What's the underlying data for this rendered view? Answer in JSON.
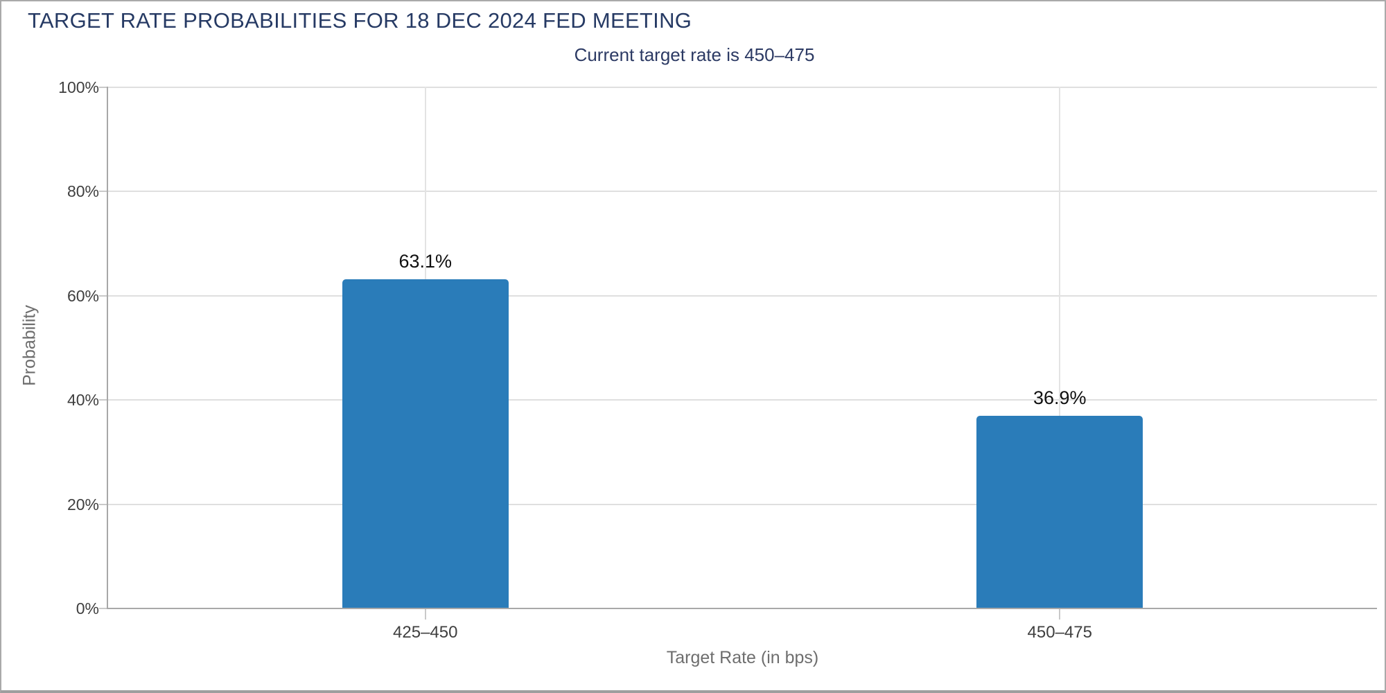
{
  "chart_data": {
    "type": "bar",
    "title": "TARGET RATE PROBABILITIES FOR 18 DEC 2024 FED MEETING",
    "subtitle": "Current target rate is 450–475",
    "categories": [
      "425–450",
      "450–475"
    ],
    "values": [
      63.1,
      36.9
    ],
    "value_labels": [
      "63.1%",
      "36.9%"
    ],
    "xlabel": "Target Rate (in bps)",
    "ylabel": "Probability",
    "ylim": [
      0,
      100
    ],
    "ytick_step": 20,
    "yticks": [
      "0%",
      "20%",
      "40%",
      "60%",
      "80%",
      "100%"
    ],
    "grid": "horizontal every 20%, vertical at category centers",
    "legend": "none",
    "bar_color": "#2a7cb9",
    "title_color": "#263a64",
    "axis_text_color": "#3f3f3f",
    "axis_title_color": "#6e6e6e",
    "gridline_color": "#dfdfdf",
    "axis_line_color": "#a8a8a8"
  }
}
